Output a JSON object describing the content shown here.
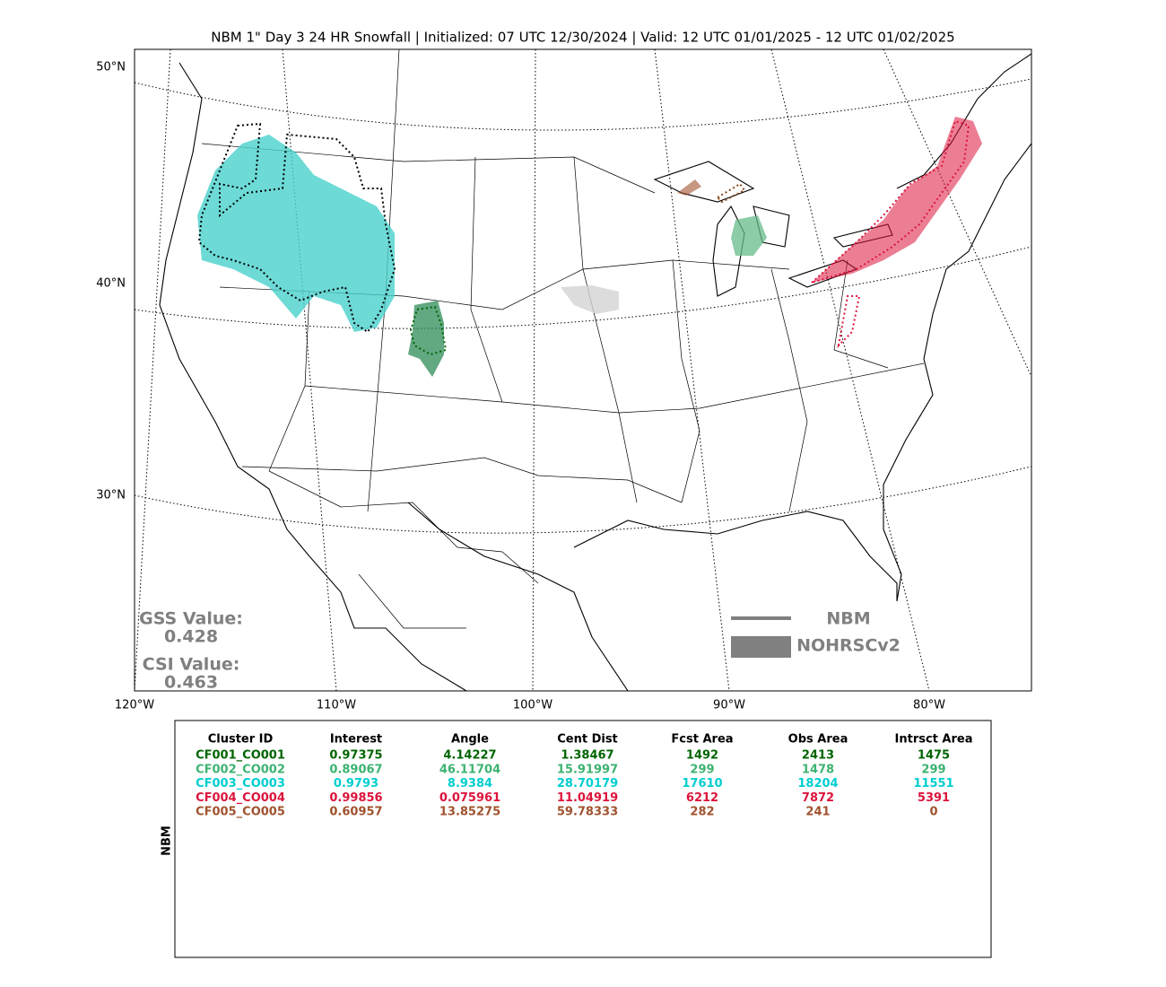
{
  "title": "NBM 1\" Day 3 24 HR Snowfall | Initialized: 07 UTC 12/30/2024 | Valid: 12 UTC 01/01/2025 - 12 UTC 01/02/2025",
  "map": {
    "lat_labels": [
      "50°N",
      "40°N",
      "30°N"
    ],
    "lon_labels": [
      "120°W",
      "110°W",
      "100°W",
      "90°W",
      "80°W"
    ],
    "scores": {
      "gss_label": "GSS Value:",
      "gss_value": "0.428",
      "csi_label": "CSI Value:",
      "csi_value": "0.463"
    },
    "legend": {
      "line_label": "NBM",
      "area_label": "NOHRSCv2"
    }
  },
  "table": {
    "side_label": "NBM",
    "columns": [
      "Cluster ID",
      "Interest",
      "Angle",
      "Cent Dist",
      "Fcst Area",
      "Obs Area",
      "Intrsct Area"
    ],
    "rows": [
      {
        "color": "#006400",
        "cells": [
          "CF001_CO001",
          "0.97375",
          "4.14227",
          "1.38467",
          "1492",
          "2413",
          "1475"
        ]
      },
      {
        "color": "#3cb371",
        "cells": [
          "CF002_CO002",
          "0.89067",
          "46.11704",
          "15.91997",
          "299",
          "1478",
          "299"
        ]
      },
      {
        "color": "#00ced1",
        "cells": [
          "CF003_CO003",
          "0.9793",
          "8.9384",
          "28.70179",
          "17610",
          "18204",
          "11551"
        ]
      },
      {
        "color": "#dc143c",
        "cells": [
          "CF004_CO004",
          "0.99856",
          "0.075961",
          "11.04919",
          "6212",
          "7872",
          "5391"
        ]
      },
      {
        "color": "#a0522d",
        "cells": [
          "CF005_CO005",
          "0.60957",
          "13.85275",
          "59.78333",
          "282",
          "241",
          "0"
        ]
      }
    ]
  }
}
